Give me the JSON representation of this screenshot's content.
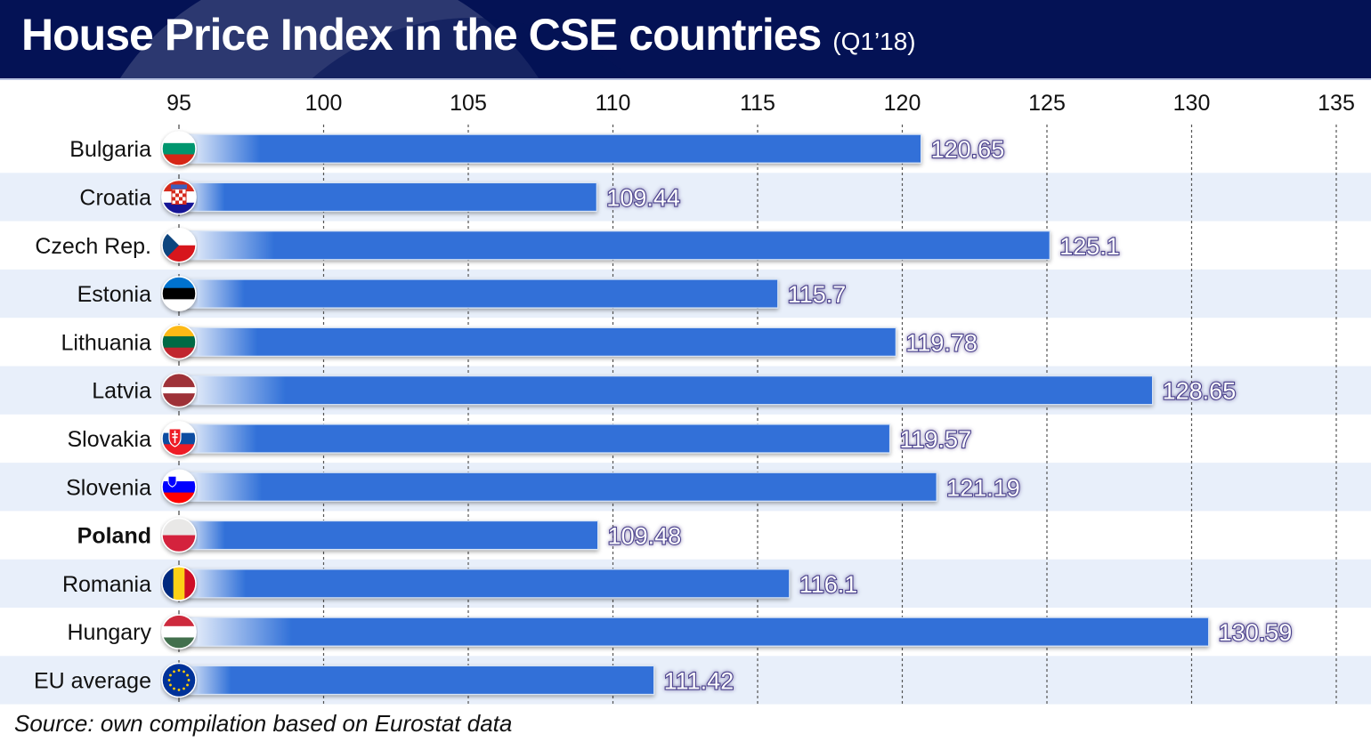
{
  "header": {
    "title": "House Price Index in the CSE countries",
    "subtitle": "(Q1’18)"
  },
  "source": "Source: own compilation based on Eurostat data",
  "colors": {
    "header_bg": "#041255",
    "bar": "#3070D8",
    "row_alt": "#E8EFFA",
    "label_outline": "#4A3F8C"
  },
  "chart_data": {
    "type": "bar",
    "orientation": "horizontal",
    "title": "House Price Index in the CSE countries (Q1’18)",
    "xlabel": "",
    "ylabel": "",
    "xlim": [
      95,
      135
    ],
    "xticks": [
      95,
      100,
      105,
      110,
      115,
      120,
      125,
      130,
      135
    ],
    "grid": "vertical dashed",
    "categories": [
      "Bulgaria",
      "Croatia",
      "Czech Rep.",
      "Estonia",
      "Lithuania",
      "Latvia",
      "Slovakia",
      "Slovenia",
      "Poland",
      "Romania",
      "Hungary",
      "EU average"
    ],
    "values": [
      120.65,
      109.44,
      125.1,
      115.7,
      119.78,
      128.65,
      119.57,
      121.19,
      109.48,
      116.1,
      130.59,
      111.42
    ],
    "value_labels": [
      "120.65",
      "109.44",
      "125.1",
      "115.7",
      "119.78",
      "128.65",
      "119.57",
      "121.19",
      "109.48",
      "116.1",
      "130.59",
      "111.42"
    ],
    "highlighted": [
      "Poland"
    ],
    "flag_icons": [
      "bulgaria-flag",
      "croatia-flag",
      "czech-flag",
      "estonia-flag",
      "lithuania-flag",
      "latvia-flag",
      "slovakia-flag",
      "slovenia-flag",
      "poland-flag",
      "romania-flag",
      "hungary-flag",
      "eu-flag"
    ]
  }
}
